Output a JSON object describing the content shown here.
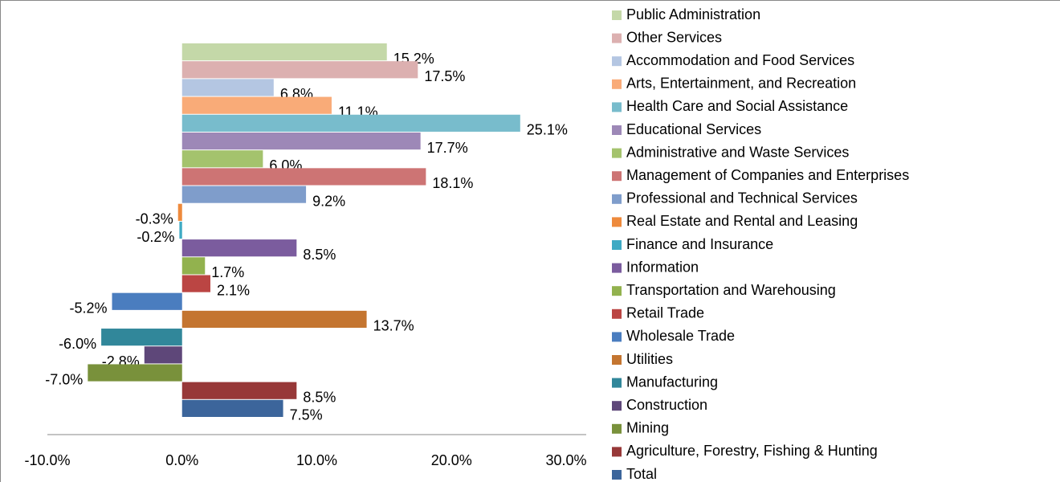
{
  "chart_data": {
    "type": "hbar",
    "categories": [
      "Public Administration",
      "Other Services",
      "Accommodation and Food Services",
      "Arts, Entertainment, and Recreation",
      "Health Care and Social Assistance",
      "Educational Services",
      "Administrative and Waste Services",
      "Management of Companies and Enterprises",
      "Professional and Technical Services",
      "Real Estate and Rental and Leasing",
      "Finance and Insurance",
      "Information",
      "Transportation and Warehousing",
      "Retail Trade",
      "Wholesale Trade",
      "Utilities",
      "Manufacturing",
      "Construction",
      "Mining",
      "Agriculture, Forestry, Fishing & Hunting",
      "Total"
    ],
    "values": [
      15.2,
      17.5,
      6.8,
      11.1,
      25.1,
      17.7,
      6.0,
      18.1,
      9.2,
      -0.3,
      -0.2,
      8.5,
      1.7,
      2.1,
      -5.2,
      13.7,
      -6.0,
      -2.8,
      -7.0,
      8.5,
      7.5
    ],
    "value_labels": [
      "15.2%",
      "17.5%",
      "6.8%",
      "11.1%",
      "25.1%",
      "17.7%",
      "6.0%",
      "18.1%",
      "9.2%",
      "-0.3%",
      "-0.2%",
      "8.5%",
      "1.7%",
      "2.1%",
      "-5.2%",
      "13.7%",
      "-6.0%",
      "-2.8%",
      "-7.0%",
      "8.5%",
      "7.5%"
    ],
    "colors": [
      "#c4d8a8",
      "#dcb0b0",
      "#b4c6e2",
      "#f9ab78",
      "#78bccc",
      "#9d88b7",
      "#a4c36d",
      "#cd7474",
      "#7f9dcb",
      "#ee8a3c",
      "#3eaac4",
      "#7b5c9e",
      "#92b24e",
      "#bb4543",
      "#4a7dbf",
      "#c47530",
      "#31879a",
      "#5e4779",
      "#79913b",
      "#973838",
      "#3c659b"
    ],
    "xlim": [
      -10,
      30
    ],
    "xticks": [
      {
        "value": -10,
        "label": "-10.0%"
      },
      {
        "value": 0,
        "label": "0.0%"
      },
      {
        "value": 10,
        "label": "10.0%"
      },
      {
        "value": 20,
        "label": "20.0%"
      },
      {
        "value": 30,
        "label": "30.0%"
      }
    ],
    "legend": "right"
  }
}
